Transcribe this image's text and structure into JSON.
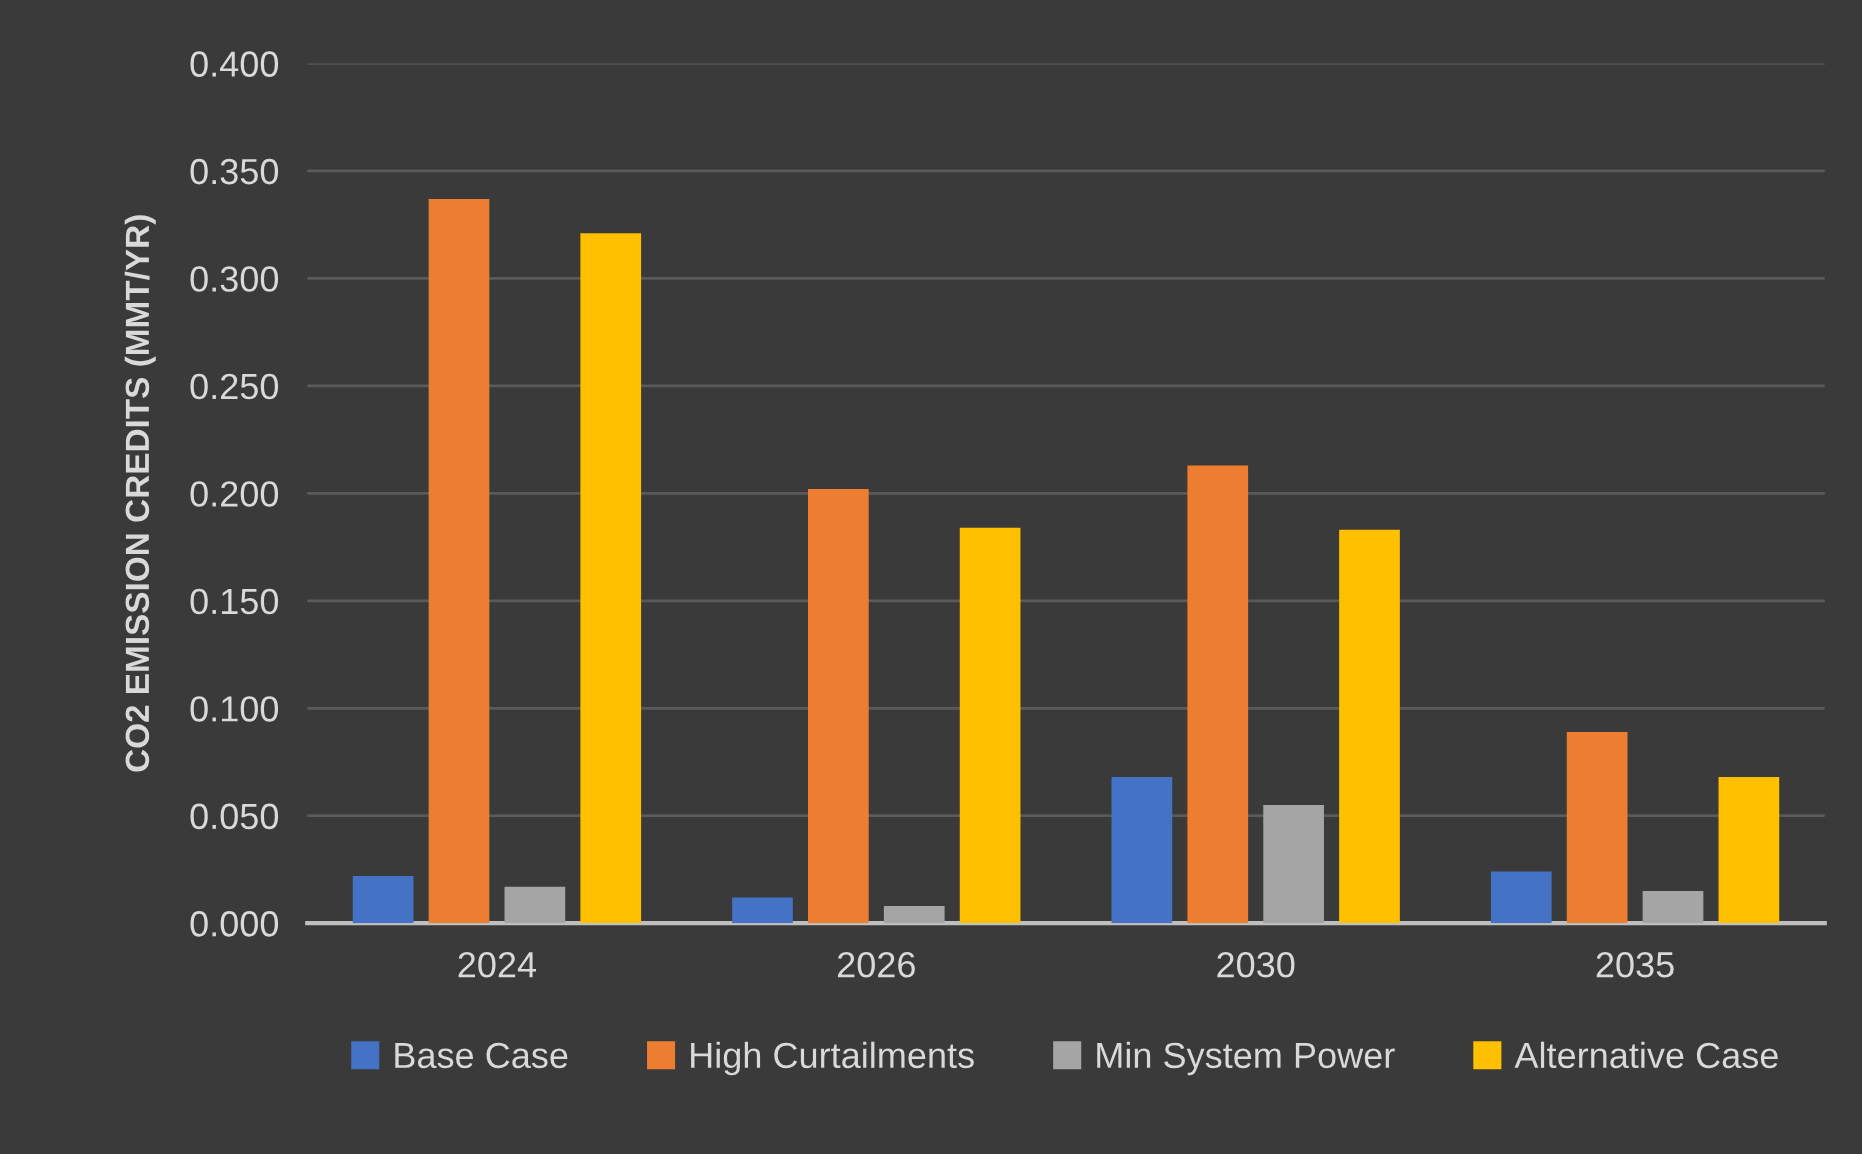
{
  "chart_data": {
    "type": "bar",
    "ylabel": "CO2 EMISSION CREDITS (MMT/YR)",
    "categories": [
      "2024",
      "2026",
      "2030",
      "2035"
    ],
    "series": [
      {
        "name": "Base Case",
        "color": "#4472c4",
        "values": [
          0.022,
          0.012,
          0.068,
          0.024
        ]
      },
      {
        "name": "High Curtailments",
        "color": "#ed7d31",
        "values": [
          0.337,
          0.202,
          0.213,
          0.089
        ]
      },
      {
        "name": "Min System Power",
        "color": "#a5a5a5",
        "values": [
          0.017,
          0.008,
          0.055,
          0.015
        ]
      },
      {
        "name": "Alternative Case",
        "color": "#ffc000",
        "values": [
          0.321,
          0.184,
          0.183,
          0.068
        ]
      }
    ],
    "ylim": [
      0,
      0.4
    ],
    "yticks": [
      {
        "value": 0,
        "label": "0.000"
      },
      {
        "value": 0.05,
        "label": "0.050"
      },
      {
        "value": 0.1,
        "label": "0.100"
      },
      {
        "value": 0.15,
        "label": "0.150"
      },
      {
        "value": 0.2,
        "label": "0.200"
      },
      {
        "value": 0.25,
        "label": "0.250"
      },
      {
        "value": 0.3,
        "label": "0.300"
      },
      {
        "value": 0.35,
        "label": "0.350"
      },
      {
        "value": 0.4,
        "label": "0.400"
      }
    ],
    "grid": "y",
    "legend": "bottom"
  }
}
